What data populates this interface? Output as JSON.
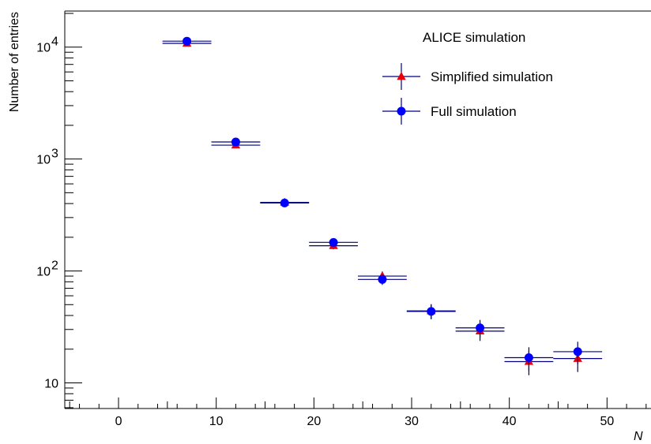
{
  "chart_data": {
    "type": "scatter",
    "xlabel": "N",
    "ylabel": "Number of entries",
    "xlim": [
      -5.5,
      54.5
    ],
    "ylim": [
      5.9,
      21000
    ],
    "yscale": "log",
    "grid": false,
    "legend_position": "top-right",
    "legend_header": "ALICE simulation",
    "x_ticks": [
      0,
      10,
      20,
      30,
      40,
      50
    ],
    "x_tick_labels": [
      "0",
      "10",
      "20",
      "30",
      "40",
      "50"
    ],
    "y_ticks": [
      10,
      100,
      1000,
      10000
    ],
    "y_tick_labels": [
      {
        "base": "10",
        "exp": ""
      },
      {
        "base": "10",
        "exp": "2"
      },
      {
        "base": "10",
        "exp": "3"
      },
      {
        "base": "10",
        "exp": "4"
      }
    ],
    "bin_half_width": 2.5,
    "series": [
      {
        "name": "Simplified simulation",
        "marker": "triangle",
        "color": "#e8000b",
        "x": [
          7,
          12,
          17,
          22,
          27,
          32,
          37,
          42,
          47
        ],
        "y": [
          10800,
          1330,
          410,
          168,
          90,
          44,
          29,
          15.5,
          16.5
        ],
        "y_err": [
          150,
          55,
          20,
          12,
          9,
          6.5,
          5.3,
          3.8,
          4
        ]
      },
      {
        "name": "Full simulation",
        "marker": "circle",
        "color": "#0000ff",
        "x": [
          7,
          12,
          17,
          22,
          27,
          32,
          37,
          42,
          47
        ],
        "y": [
          11300,
          1420,
          405,
          180,
          84,
          43.5,
          31,
          16.8,
          19
        ],
        "y_err": [
          160,
          55,
          20,
          13,
          9,
          6.5,
          5.5,
          4,
          4.3
        ]
      }
    ],
    "error_bar_color": "#000080"
  }
}
